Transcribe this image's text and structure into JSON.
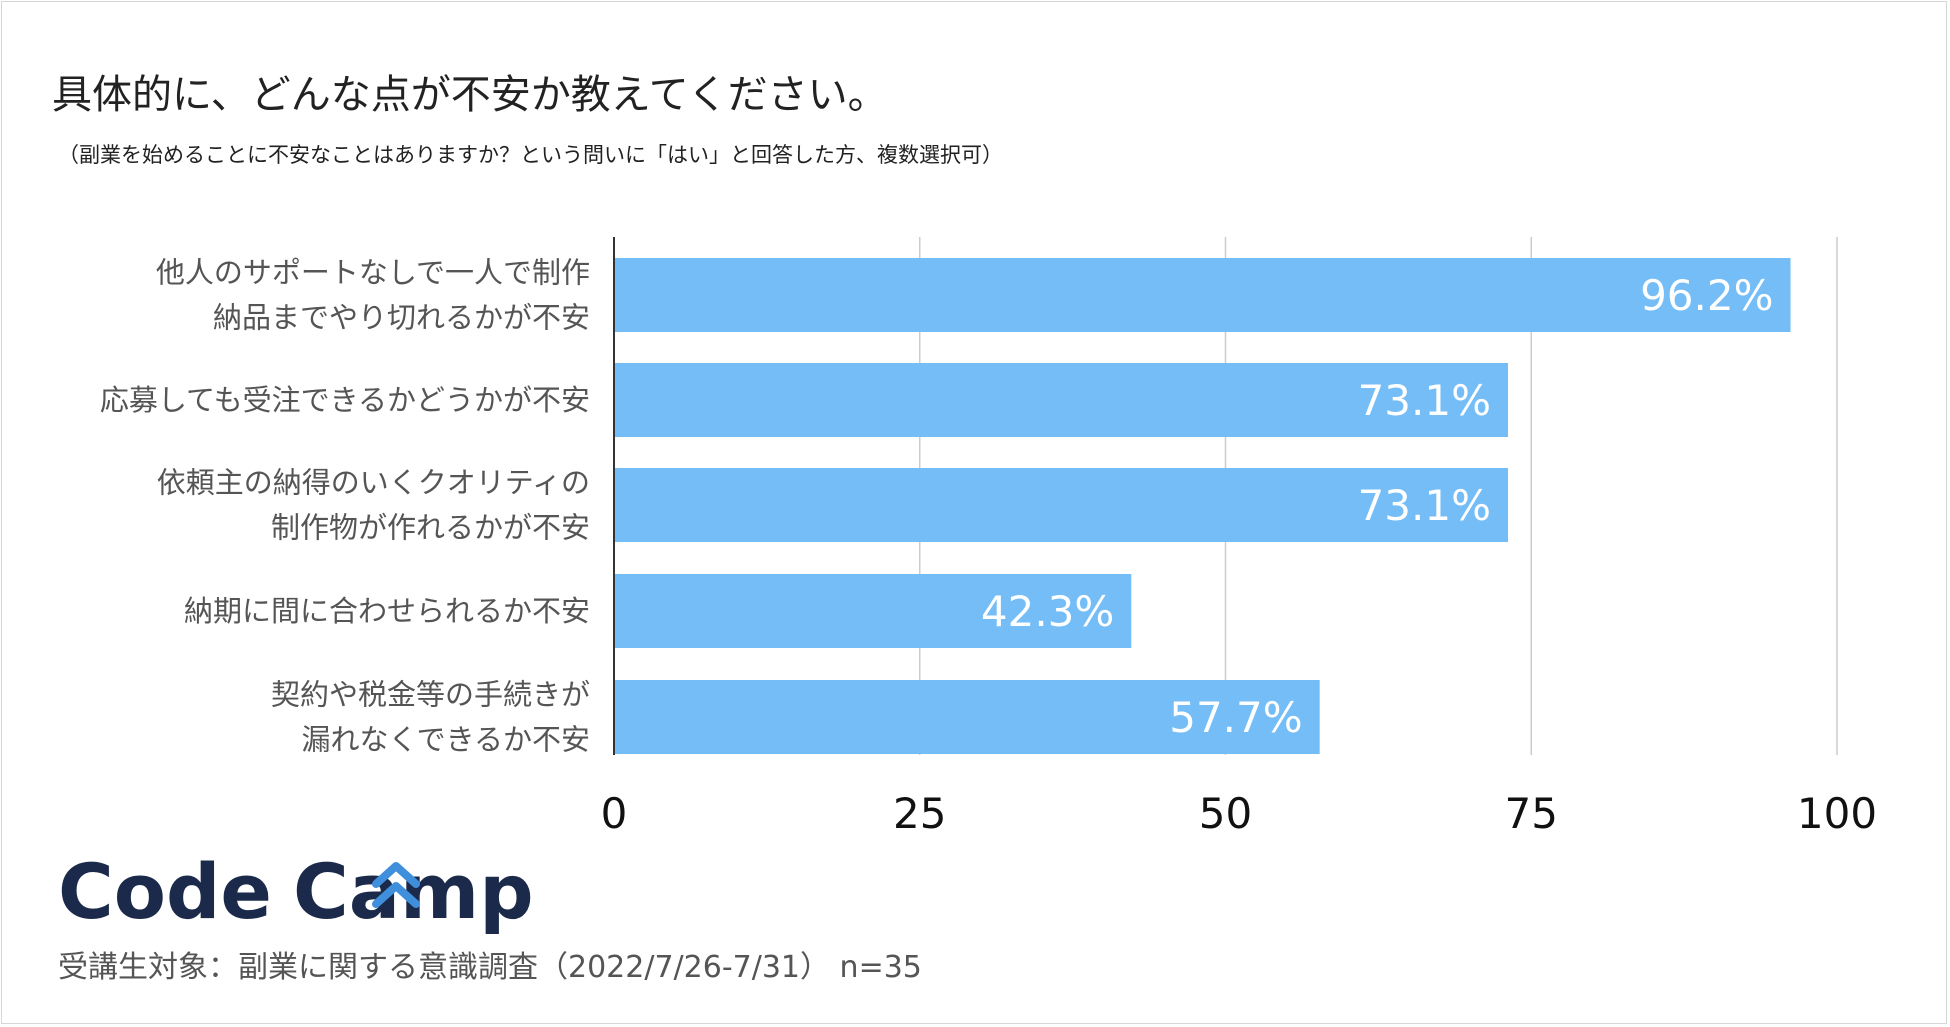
{
  "title": "具体的に、どんな点が不安か教えてください。",
  "subtitle": "（副業を始めることに不安なことはありますか？という問いに「はい」と回答した方、複数選択可）",
  "chart_data": {
    "type": "bar",
    "orientation": "horizontal",
    "categories": [
      [
        "他人のサポートなしで一人で制作",
        "納品までやり切れるかが不安"
      ],
      [
        "応募しても受注できるかどうかが不安"
      ],
      [
        "依頼主の納得のいくクオリティの",
        "制作物が作れるかが不安"
      ],
      [
        "納期に間に合わせられるか不安"
      ],
      [
        "契約や税金等の手続きが",
        "漏れなくできるか不安"
      ]
    ],
    "values": [
      96.2,
      73.1,
      73.1,
      42.3,
      57.7
    ],
    "value_labels": [
      "96.2%",
      "73.1%",
      "73.1%",
      "42.3%",
      "57.7%"
    ],
    "xlim": [
      0,
      100
    ],
    "xticks": [
      0,
      25,
      50,
      75,
      100
    ],
    "grid": true,
    "legend": "none",
    "bar_color": "#74bdf7",
    "label_color": "#ffffff",
    "grid_color": "#cccccc"
  },
  "logo": {
    "text": "CodeCamp",
    "color": "#1b2a4a",
    "accent_color": "#3f8fdc"
  },
  "footer": "受講生対象：副業に関する意識調査（2022/7/26-7/31） n=35"
}
